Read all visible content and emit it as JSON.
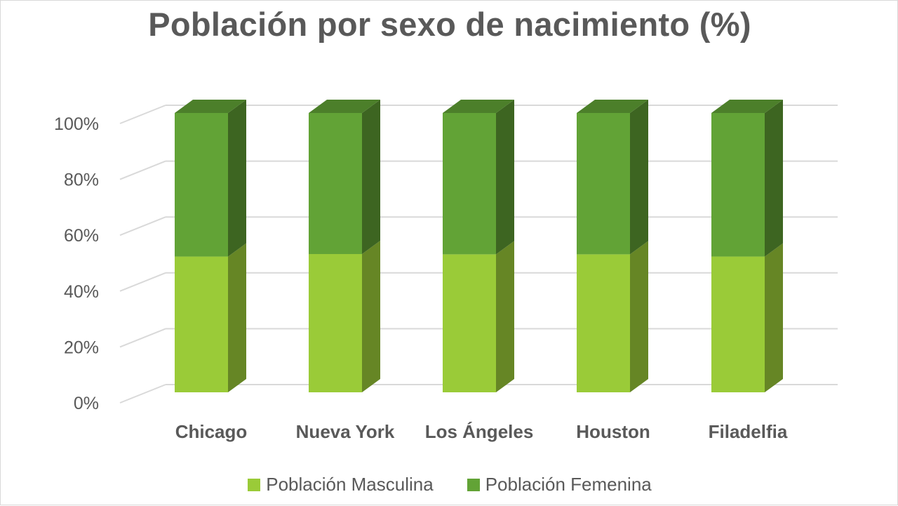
{
  "chart_data": {
    "type": "bar",
    "stacked": true,
    "percent_stacked": true,
    "style": "3d-column",
    "title": "Población por sexo de nacimiento (%)",
    "categories": [
      "Chicago",
      "Nueva York",
      "Los Ángeles",
      "Houston",
      "Filadelfia"
    ],
    "series": [
      {
        "name": "Población Masculina",
        "color": "#9ACB38",
        "values": [
          48.6,
          49.5,
          49.4,
          49.4,
          48.6
        ]
      },
      {
        "name": "Población Femenina",
        "color": "#62A336",
        "values": [
          51.4,
          50.5,
          50.6,
          50.6,
          51.4
        ]
      }
    ],
    "y_ticks": [
      "0%",
      "20%",
      "40%",
      "60%",
      "80%",
      "100%"
    ],
    "ylim": [
      0,
      100
    ],
    "grid": true,
    "legend_position": "bottom"
  }
}
